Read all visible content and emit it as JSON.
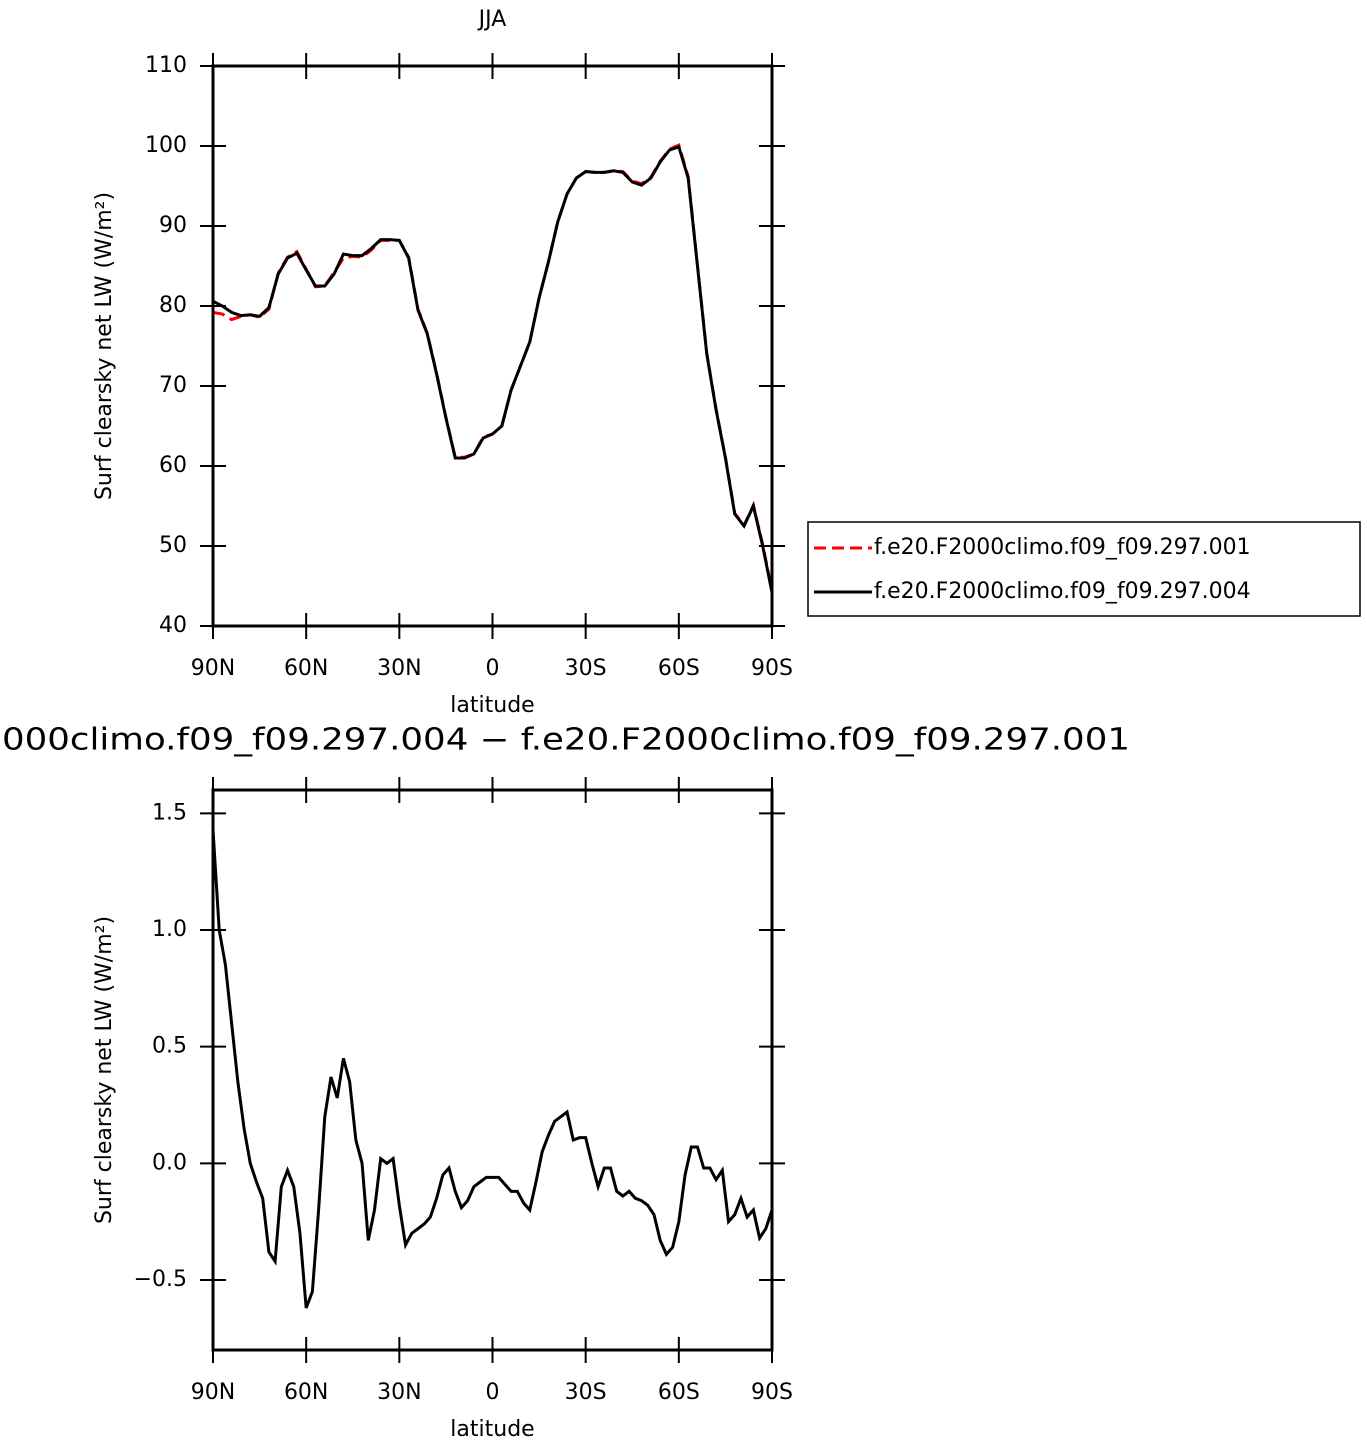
{
  "chart_data": [
    {
      "type": "line",
      "title": "JJA",
      "xlabel": "latitude",
      "ylabel": "Surf clearsky net LW (W/m²)",
      "x": [
        90,
        87,
        84,
        81,
        78,
        75,
        72,
        69,
        66,
        63,
        60,
        57,
        54,
        51,
        48,
        45,
        42,
        39,
        36,
        33,
        30,
        27,
        24,
        21,
        18,
        15,
        12,
        9,
        6,
        3,
        0,
        -3,
        -6,
        -9,
        -12,
        -15,
        -18,
        -21,
        -24,
        -27,
        -30,
        -33,
        -36,
        -39,
        -42,
        -45,
        -48,
        -51,
        -54,
        -57,
        -60,
        -63,
        -66,
        -69,
        -72,
        -75,
        -78,
        -81,
        -84,
        -87,
        -90
      ],
      "series": [
        {
          "name": "f.e20.F2000climo.f09_f09.297.001",
          "color": "#ff0000",
          "dash": true,
          "values": [
            79.2,
            79.0,
            78.3,
            78.7,
            78.9,
            78.6,
            79.6,
            84.1,
            86.1,
            86.8,
            84.6,
            82.4,
            82.5,
            84.2,
            86.0,
            86.2,
            86.1,
            87.0,
            88.2,
            88.2,
            88.2,
            86.1,
            79.6,
            76.6,
            71.6,
            66.1,
            61.1,
            61.1,
            61.5,
            63.6,
            64.0,
            65.0,
            69.5,
            72.5,
            75.5,
            81.0,
            85.5,
            90.5,
            94.0,
            96.0,
            96.8,
            96.7,
            96.7,
            96.9,
            96.8,
            95.6,
            95.3,
            96.1,
            98.1,
            99.6,
            100.1,
            96.2,
            85.1,
            74.1,
            67.1,
            61.1,
            54.1,
            52.6,
            55.1,
            50.2,
            44.4
          ]
        },
        {
          "name": "f.e20.F2000climo.f09_f09.297.004",
          "color": "#000000",
          "dash": false,
          "values": [
            80.6,
            80.0,
            79.2,
            78.8,
            78.9,
            78.7,
            79.8,
            84.0,
            86.0,
            86.6,
            84.5,
            82.5,
            82.5,
            84.0,
            86.5,
            86.3,
            86.3,
            87.2,
            88.3,
            88.3,
            88.2,
            86.0,
            79.5,
            76.5,
            71.5,
            66.0,
            61.0,
            61.0,
            61.5,
            63.5,
            64.0,
            65.0,
            69.5,
            72.5,
            75.5,
            81.0,
            85.5,
            90.5,
            94.0,
            96.0,
            96.8,
            96.7,
            96.7,
            96.9,
            96.7,
            95.5,
            95.1,
            96.0,
            98.0,
            99.5,
            99.9,
            96.0,
            85.0,
            74.0,
            67.0,
            61.0,
            54.0,
            52.5,
            55.0,
            50.0,
            44.2
          ]
        }
      ],
      "xlim": [
        90,
        -90
      ],
      "ylim": [
        40,
        110
      ],
      "xticks": [
        {
          "value": 90,
          "label": "90N"
        },
        {
          "value": 60,
          "label": "60N"
        },
        {
          "value": 30,
          "label": "30N"
        },
        0,
        {
          "value": -30,
          "label": "30S"
        },
        {
          "value": -60,
          "label": "60S"
        },
        {
          "value": -90,
          "label": "90S"
        }
      ],
      "yticks": [
        40,
        50,
        60,
        70,
        80,
        90,
        100,
        110
      ],
      "legend": "right"
    },
    {
      "type": "line",
      "title": "000climo.f09_f09.297.004 − f.e20.F2000climo.f09_f09.297.001",
      "xlabel": "latitude",
      "ylabel": "Surf clearsky net LW (W/m²)",
      "x": [
        90,
        88,
        86,
        84,
        82,
        80,
        78,
        76,
        74,
        72,
        70,
        68,
        66,
        64,
        62,
        60,
        58,
        56,
        54,
        52,
        50,
        48,
        46,
        44,
        42,
        40,
        38,
        36,
        34,
        32,
        30,
        28,
        26,
        24,
        22,
        20,
        18,
        16,
        14,
        12,
        10,
        8,
        6,
        4,
        2,
        0,
        -2,
        -4,
        -6,
        -8,
        -10,
        -12,
        -14,
        -16,
        -18,
        -20,
        -22,
        -24,
        -26,
        -28,
        -30,
        -32,
        -34,
        -36,
        -38,
        -40,
        -42,
        -44,
        -46,
        -48,
        -50,
        -52,
        -54,
        -56,
        -58,
        -60,
        -62,
        -64,
        -66,
        -68,
        -70,
        -72,
        -74,
        -76,
        -78,
        -80,
        -82,
        -84,
        -86,
        -88,
        -90
      ],
      "series": [
        {
          "color": "#000000",
          "values": [
            1.43,
            1.0,
            0.85,
            0.6,
            0.35,
            0.15,
            0.0,
            -0.08,
            -0.15,
            -0.38,
            -0.42,
            -0.1,
            -0.03,
            -0.1,
            -0.3,
            -0.62,
            -0.55,
            -0.2,
            0.2,
            0.37,
            0.28,
            0.45,
            0.35,
            0.1,
            0.0,
            -0.33,
            -0.2,
            0.02,
            0.0,
            0.02,
            -0.18,
            -0.35,
            -0.3,
            -0.28,
            -0.26,
            -0.23,
            -0.15,
            -0.05,
            -0.02,
            -0.12,
            -0.19,
            -0.16,
            -0.1,
            -0.08,
            -0.06,
            -0.06,
            -0.06,
            -0.09,
            -0.12,
            -0.12,
            -0.17,
            -0.2,
            -0.08,
            0.05,
            0.12,
            0.18,
            0.2,
            0.22,
            0.1,
            0.11,
            0.11,
            0.0,
            -0.1,
            -0.02,
            -0.02,
            -0.12,
            -0.14,
            -0.12,
            -0.15,
            -0.16,
            -0.18,
            -0.22,
            -0.33,
            -0.39,
            -0.36,
            -0.25,
            -0.05,
            0.07,
            0.07,
            -0.02,
            -0.02,
            -0.07,
            -0.03,
            -0.25,
            -0.22,
            -0.15,
            -0.23,
            -0.2,
            -0.32,
            -0.28,
            -0.2
          ]
        }
      ],
      "xlim": [
        90,
        -90
      ],
      "ylim": [
        -0.8,
        1.6
      ],
      "xticks": [
        {
          "value": 90,
          "label": "90N"
        },
        {
          "value": 60,
          "label": "60N"
        },
        {
          "value": 30,
          "label": "30N"
        },
        0,
        {
          "value": -30,
          "label": "30S"
        },
        {
          "value": -60,
          "label": "60S"
        },
        {
          "value": -90,
          "label": "90S"
        }
      ],
      "yticks": [
        {
          "value": -0.5,
          "label": "−0.5"
        },
        {
          "value": 0,
          "label": "0.0"
        },
        0.5,
        {
          "value": 1,
          "label": "1.0"
        },
        1.5
      ]
    }
  ]
}
